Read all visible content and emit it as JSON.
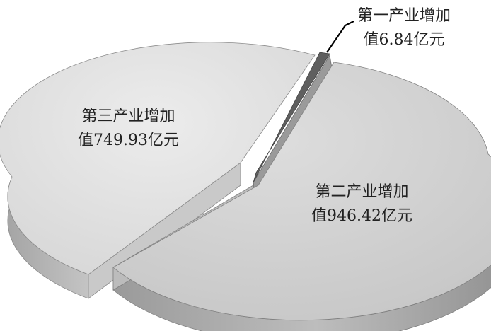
{
  "chart_data": {
    "type": "pie",
    "title": "",
    "slices": [
      {
        "label_line1": "第一产业增加",
        "label_line2": "值6.84亿元",
        "value": 6.84,
        "color": "#5f5f5f"
      },
      {
        "label_line1": "第二产业增加",
        "label_line2": "值946.42亿元",
        "value": 946.42,
        "color": "#cfcfcf"
      },
      {
        "label_line1": "第三产业增加",
        "label_line2": "值749.93亿元",
        "value": 749.93,
        "color": "#e2e2e2"
      }
    ],
    "style": "3d-exploded",
    "legend": "none"
  }
}
